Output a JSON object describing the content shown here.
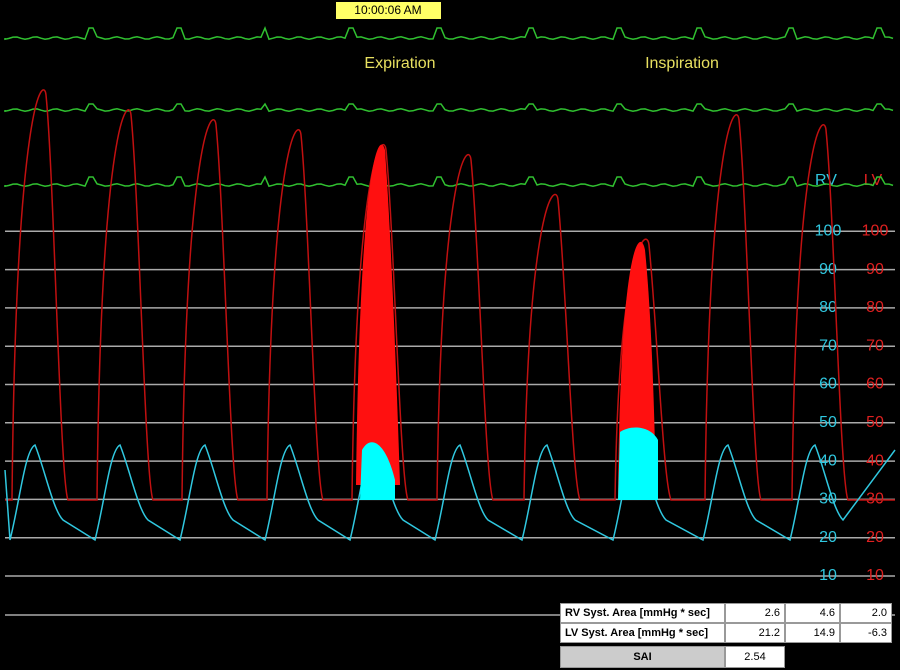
{
  "timestamp": "10:00:06 AM",
  "phases": [
    "Expiration",
    "Inspiration"
  ],
  "scales": {
    "rv": {
      "label": "RV",
      "ticks": [
        100,
        90,
        80,
        70,
        60,
        50,
        40,
        30,
        20,
        10
      ]
    },
    "lv": {
      "label": "LV",
      "ticks": [
        100,
        90,
        80,
        70,
        60,
        50,
        40,
        30,
        20,
        10
      ]
    }
  },
  "table": {
    "rows": [
      [
        "RV Syst. Area [mmHg * sec]",
        "2.6",
        "4.6",
        "2.0"
      ],
      [
        "LV Syst. Area [mmHg * sec]",
        "21.2",
        "14.9",
        "-6.3"
      ]
    ],
    "sai": {
      "label": "SAI",
      "value": "2.54"
    }
  }
}
